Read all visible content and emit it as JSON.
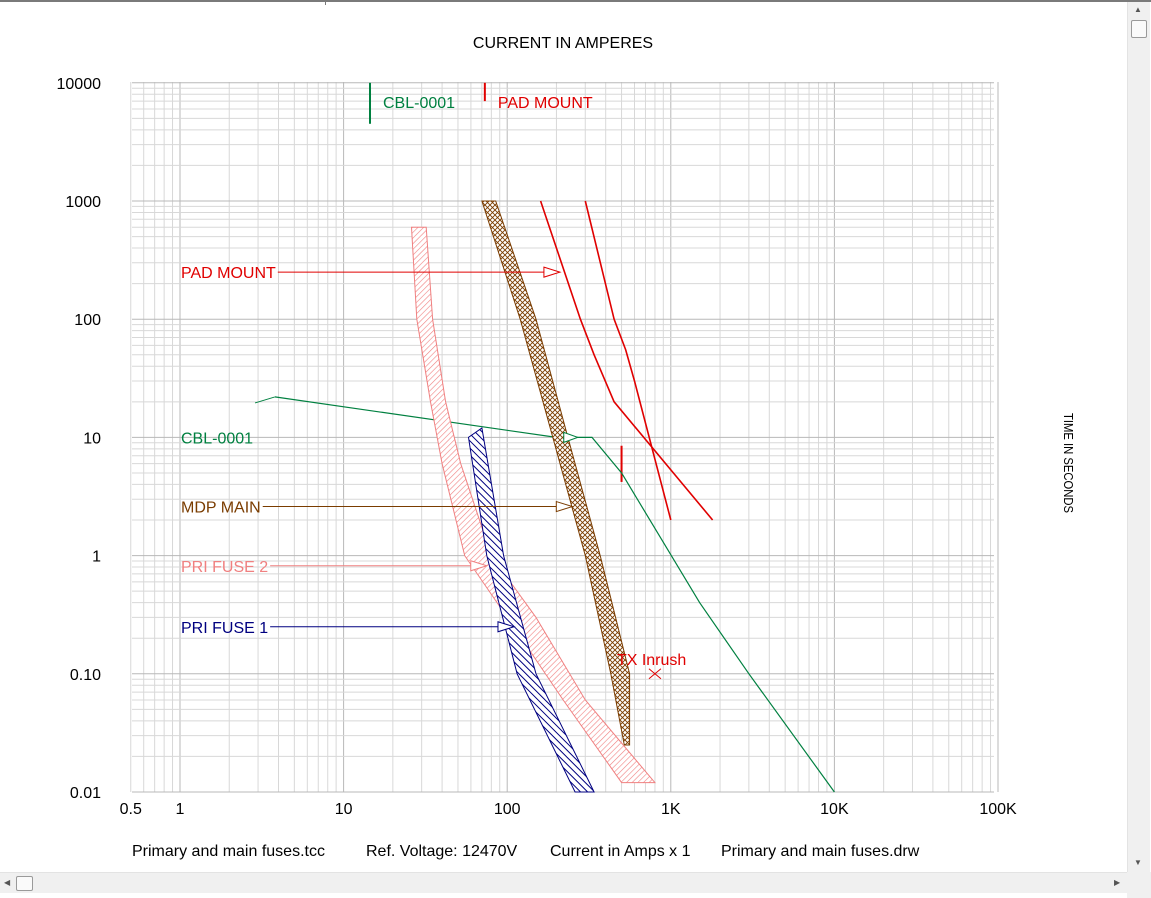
{
  "chart_data": {
    "type": "line",
    "title": "CURRENT IN AMPERES",
    "ylabel": "TIME IN SECONDS",
    "xscale": "log",
    "yscale": "log",
    "xlim": [
      0.5,
      100000
    ],
    "ylim": [
      0.01,
      10000
    ],
    "x_tick_labels": [
      {
        "value": 0.5,
        "label": "0.5"
      },
      {
        "value": 1,
        "label": "1"
      },
      {
        "value": 10,
        "label": "10"
      },
      {
        "value": 100,
        "label": "100"
      },
      {
        "value": 1000,
        "label": "1K"
      },
      {
        "value": 10000,
        "label": "10K"
      },
      {
        "value": 100000,
        "label": "100K"
      }
    ],
    "y_tick_labels": [
      {
        "value": 10000,
        "label": "10000"
      },
      {
        "value": 1000,
        "label": "1000"
      },
      {
        "value": 100,
        "label": "100"
      },
      {
        "value": 10,
        "label": "10"
      },
      {
        "value": 1,
        "label": "1"
      },
      {
        "value": 0.1,
        "label": "0.10"
      },
      {
        "value": 0.01,
        "label": "0.01"
      }
    ],
    "grid": true,
    "series": [
      {
        "name": "PAD MOUNT",
        "color": "#e00000",
        "style": "lines",
        "curves": [
          [
            [
              300,
              1000
            ],
            [
              450,
              100
            ],
            [
              530,
              55
            ],
            [
              600,
              30
            ],
            [
              1000,
              2.0
            ]
          ],
          [
            [
              160,
              1000
            ],
            [
              280,
              100
            ],
            [
              340,
              50
            ],
            [
              450,
              20
            ],
            [
              1800,
              2.0
            ]
          ]
        ],
        "marker_line": {
          "x": 500,
          "y_from": 4.2,
          "y_to": 8.5
        },
        "top_tick": {
          "x": 73,
          "y_from": 7000,
          "y_to": 10000
        },
        "legend_arrow": {
          "y": 250,
          "x_to": 210
        }
      },
      {
        "name": "CBL-0001",
        "color": "#008040",
        "style": "line",
        "points": [
          [
            3.8,
            22
          ],
          [
            200,
            10
          ],
          [
            330,
            10
          ],
          [
            500,
            5
          ],
          [
            1500,
            0.4
          ],
          [
            3000,
            0.1
          ],
          [
            10000,
            0.01
          ]
        ],
        "top_tick": {
          "x": 14.5,
          "y_from": 4500,
          "y_to": 10000
        },
        "legend_arrow": {
          "y": 10,
          "x_to": 270
        }
      },
      {
        "name": "MDP MAIN",
        "color": "#7a3c00",
        "style": "band",
        "hatch": "crosshatch",
        "upper": [
          [
            85,
            1000
          ],
          [
            150,
            100
          ],
          [
            235,
            10
          ],
          [
            370,
            1
          ],
          [
            560,
            0.1
          ],
          [
            560,
            0.025
          ]
        ],
        "lower": [
          [
            70,
            1000
          ],
          [
            120,
            100
          ],
          [
            190,
            10
          ],
          [
            300,
            1
          ],
          [
            430,
            0.1
          ],
          [
            520,
            0.025
          ]
        ],
        "legend_arrow": {
          "y": 2.6,
          "x_to": 250
        }
      },
      {
        "name": "PRI FUSE 2",
        "color": "#f08080",
        "style": "band",
        "hatch": "diagonal",
        "upper": [
          [
            32,
            600
          ],
          [
            35,
            100
          ],
          [
            42,
            20
          ],
          [
            52,
            6
          ],
          [
            80,
            1
          ],
          [
            150,
            0.3
          ],
          [
            300,
            0.06
          ],
          [
            800,
            0.012
          ]
        ],
        "lower": [
          [
            26,
            600
          ],
          [
            28,
            100
          ],
          [
            34,
            20
          ],
          [
            40,
            6
          ],
          [
            55,
            1
          ],
          [
            100,
            0.3
          ],
          [
            220,
            0.06
          ],
          [
            500,
            0.012
          ]
        ],
        "legend_arrow": {
          "y": 0.82,
          "x_to": 75
        }
      },
      {
        "name": "PRI FUSE 1",
        "color": "#000080",
        "style": "band",
        "hatch": "diagonal",
        "upper": [
          [
            70,
            12
          ],
          [
            95,
            1
          ],
          [
            150,
            0.1
          ],
          [
            340,
            0.01
          ]
        ],
        "lower": [
          [
            58,
            10
          ],
          [
            75,
            1
          ],
          [
            115,
            0.1
          ],
          [
            260,
            0.01
          ]
        ],
        "legend_arrow": {
          "y": 0.25,
          "x_to": 110
        }
      }
    ],
    "annotations": [
      {
        "text": "TX Inrush",
        "x": 800,
        "y": 0.1,
        "color": "#e00000",
        "marker": "x"
      }
    ],
    "legend_position": "left"
  },
  "footer": {
    "tcc_file": "Primary and main fuses.tcc",
    "ref_voltage": "Ref. Voltage: 12470V",
    "current_scale": "Current in Amps x 1",
    "drw_file": "Primary and main fuses.drw"
  },
  "scrollbars": {
    "up_arrow": "▲",
    "down_arrow": "▼",
    "left_arrow": "◀",
    "right_arrow": "▶"
  }
}
